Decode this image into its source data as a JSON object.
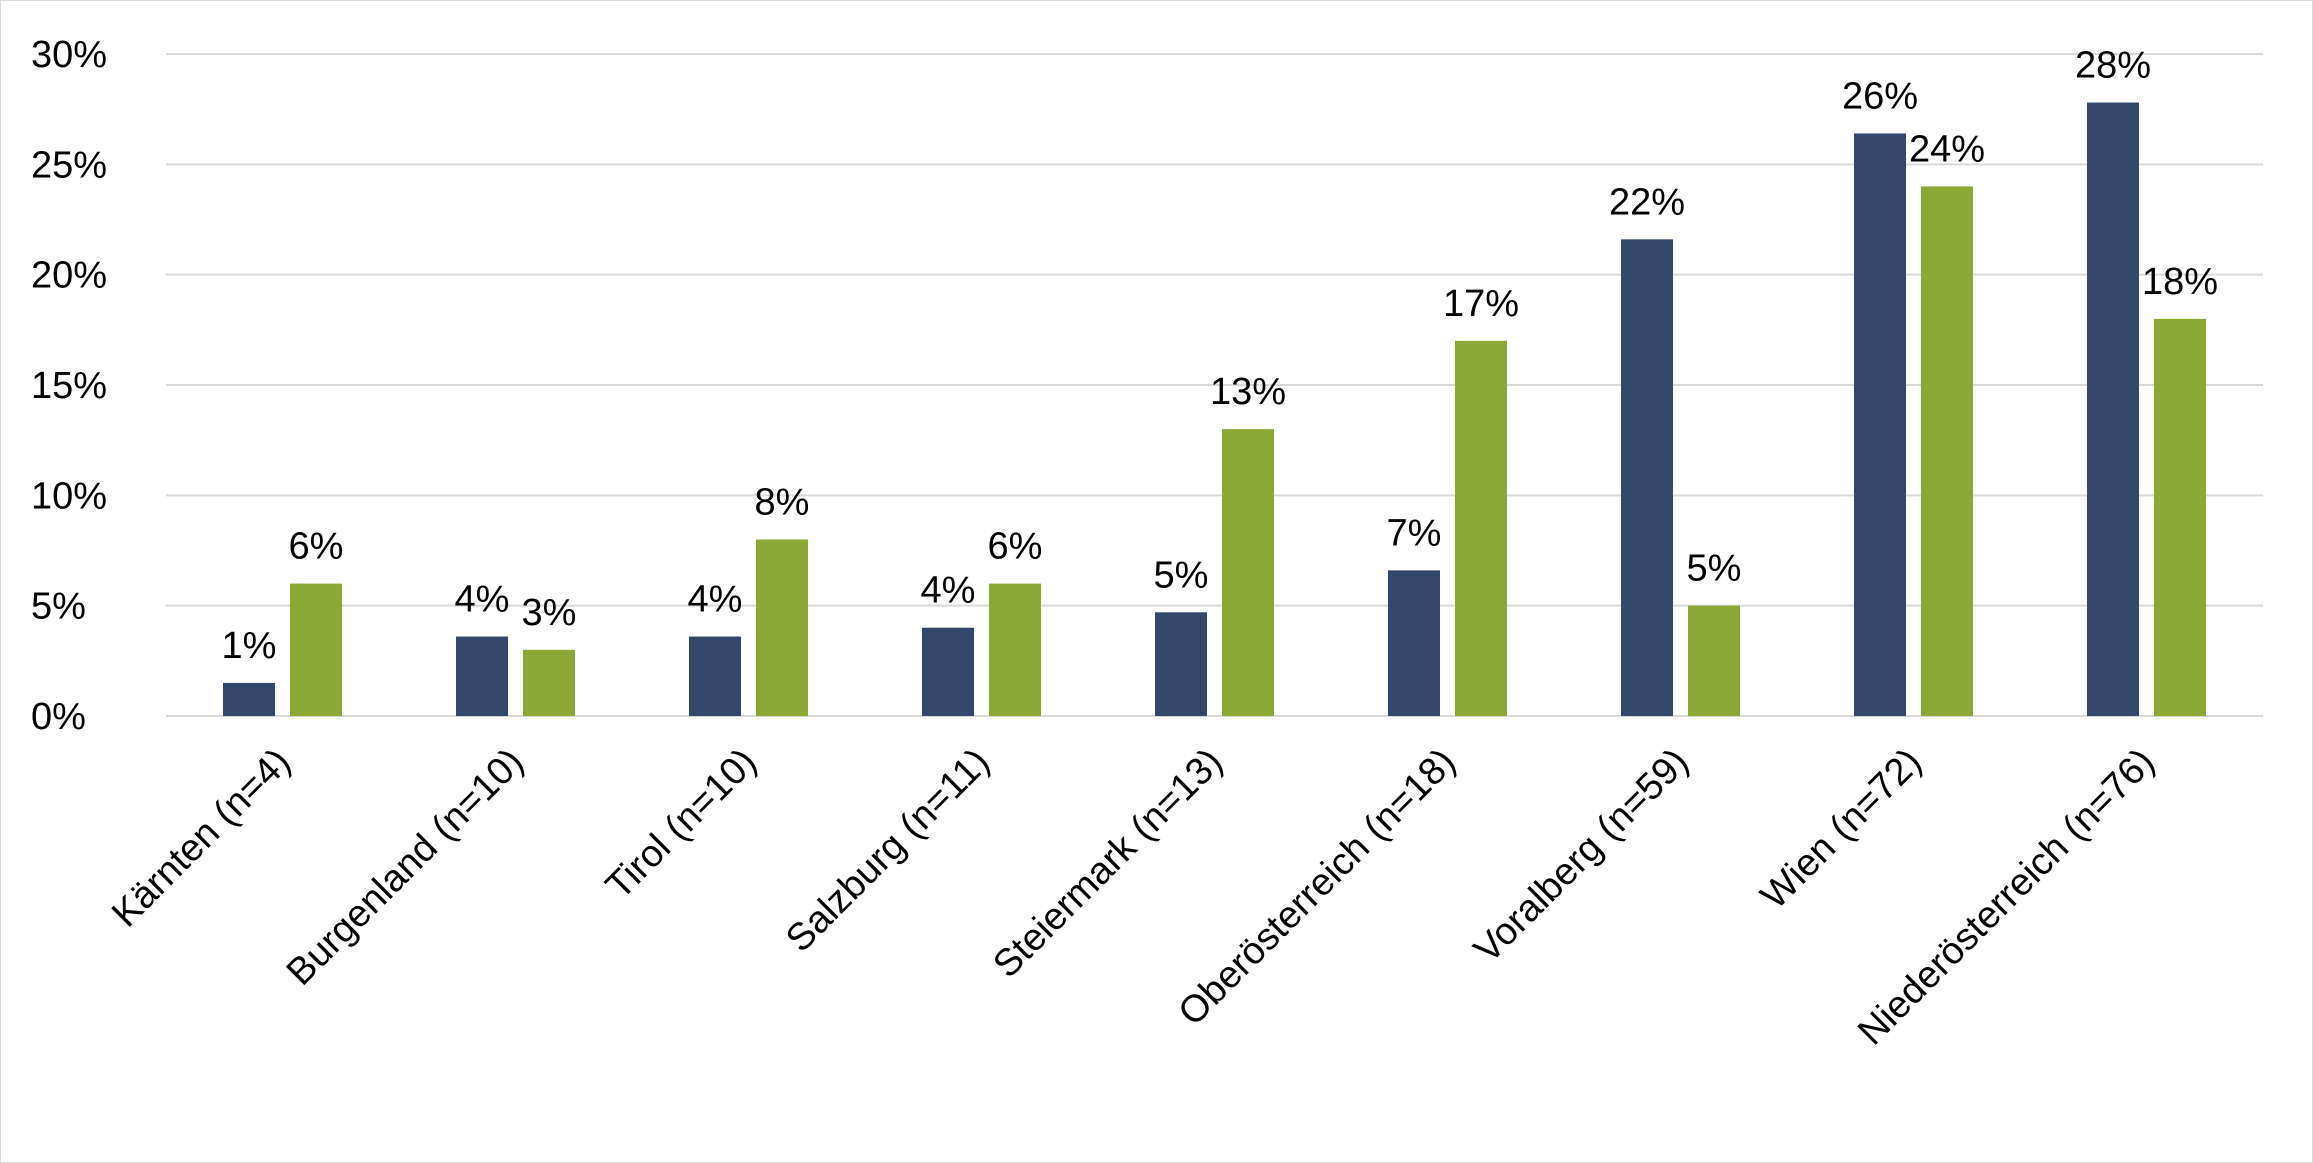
{
  "chart_data": {
    "type": "bar",
    "title": "",
    "xlabel": "",
    "ylabel": "",
    "ylim": [
      0,
      30
    ],
    "yticks": [
      "0%",
      "5%",
      "10%",
      "15%",
      "20%",
      "25%",
      "30%"
    ],
    "ytick_values": [
      0,
      5,
      10,
      15,
      20,
      25,
      30
    ],
    "grid": true,
    "legend": "none",
    "categories": [
      "Kärnten (n=4)",
      "Burgenland (n=10)",
      "Tirol (n=10)",
      "Salzburg (n=11)",
      "Steiermark (n=13)",
      "Oberösterreich (n=18)",
      "Voralberg (n=59)",
      "Wien (n=72)",
      "Niederösterreich (n=76)"
    ],
    "series": [
      {
        "color": "#33476b",
        "values": [
          1.5,
          3.6,
          3.6,
          4.0,
          4.7,
          6.6,
          21.6,
          26.4,
          27.8
        ],
        "labels": [
          "1%",
          "4%",
          "4%",
          "4%",
          "5%",
          "7%",
          "22%",
          "26%",
          "28%"
        ]
      },
      {
        "color": "#8aa833",
        "values": [
          6.0,
          3.0,
          8.0,
          6.0,
          13.0,
          17.0,
          5.0,
          24.0,
          18.0
        ],
        "labels": [
          "6%",
          "3%",
          "8%",
          "6%",
          "13%",
          "17%",
          "5%",
          "24%",
          "18%"
        ]
      }
    ]
  }
}
